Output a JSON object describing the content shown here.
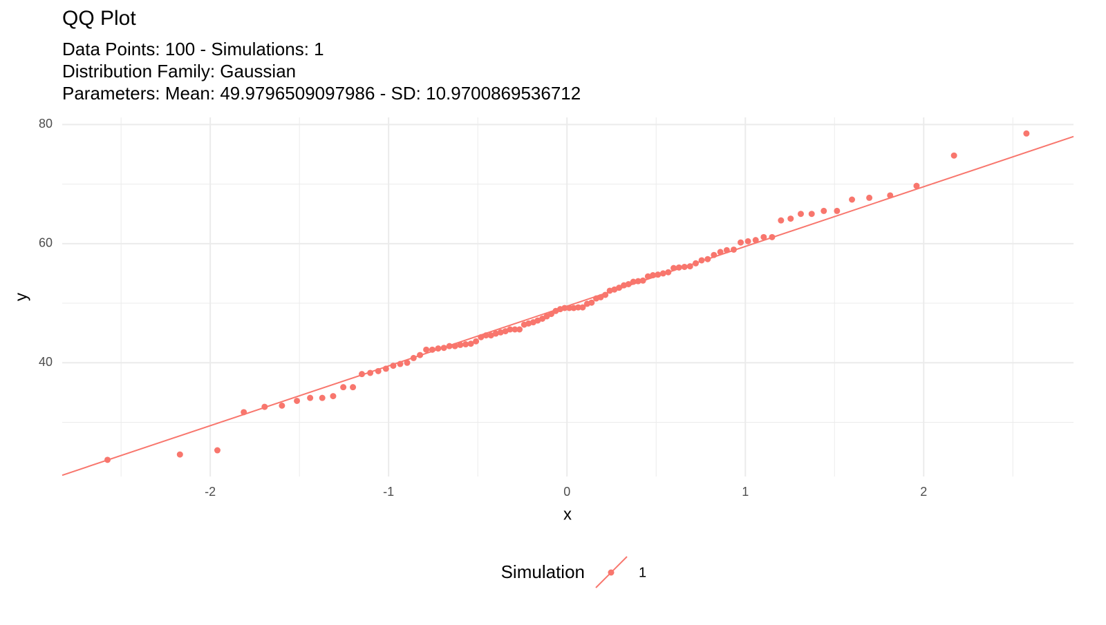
{
  "chart_data": {
    "type": "scatter",
    "title": "QQ Plot",
    "subtitle": [
      "Data Points: 100 - Simulations: 1",
      "Distribution Family: Gaussian",
      "Parameters: Mean: 49.9796509097986 - SD: 10.9700869536712"
    ],
    "x_label": "x",
    "y_label": "y",
    "legend_title": "Simulation",
    "legend_position": "bottom",
    "grid": true,
    "xlim": [
      -2.83,
      2.84
    ],
    "ylim": [
      20.9,
      81.2
    ],
    "xticks": [
      -2,
      -1,
      0,
      1,
      2
    ],
    "yticks": [
      40,
      60,
      80
    ],
    "x_minor_breaks": [
      -2.5,
      -1.5,
      -0.5,
      0.5,
      1.5,
      2.5
    ],
    "y_minor_breaks": [
      30,
      50,
      70
    ],
    "reference_line": {
      "slope": 10.03,
      "intercept": 49.5
    },
    "series": [
      {
        "name": "1",
        "color": "#F8766D",
        "x": [
          -2.576,
          -2.17,
          -1.96,
          -1.812,
          -1.695,
          -1.598,
          -1.514,
          -1.44,
          -1.372,
          -1.311,
          -1.254,
          -1.2,
          -1.15,
          -1.103,
          -1.058,
          -1.015,
          -0.974,
          -0.935,
          -0.896,
          -0.86,
          -0.824,
          -0.789,
          -0.755,
          -0.722,
          -0.69,
          -0.659,
          -0.628,
          -0.598,
          -0.568,
          -0.539,
          -0.51,
          -0.482,
          -0.454,
          -0.426,
          -0.399,
          -0.372,
          -0.345,
          -0.319,
          -0.292,
          -0.266,
          -0.24,
          -0.215,
          -0.189,
          -0.164,
          -0.138,
          -0.113,
          -0.088,
          -0.063,
          -0.038,
          -0.013,
          0.013,
          0.038,
          0.063,
          0.088,
          0.113,
          0.138,
          0.164,
          0.189,
          0.215,
          0.24,
          0.266,
          0.292,
          0.319,
          0.345,
          0.372,
          0.399,
          0.426,
          0.454,
          0.482,
          0.51,
          0.539,
          0.568,
          0.598,
          0.628,
          0.659,
          0.69,
          0.722,
          0.755,
          0.789,
          0.824,
          0.86,
          0.896,
          0.935,
          0.974,
          1.015,
          1.058,
          1.103,
          1.15,
          1.2,
          1.254,
          1.311,
          1.372,
          1.44,
          1.514,
          1.598,
          1.695,
          1.812,
          1.96,
          2.17,
          2.576
        ],
        "values": [
          23.7,
          24.6,
          25.3,
          31.7,
          32.6,
          32.8,
          33.6,
          34.1,
          34.1,
          34.4,
          35.9,
          35.9,
          38.1,
          38.3,
          38.6,
          39.0,
          39.5,
          39.8,
          40.0,
          40.8,
          41.3,
          42.2,
          42.2,
          42.4,
          42.5,
          42.8,
          42.8,
          43.0,
          43.1,
          43.2,
          43.6,
          44.3,
          44.6,
          44.6,
          44.9,
          45.1,
          45.3,
          45.6,
          45.6,
          45.6,
          46.4,
          46.6,
          46.8,
          47.1,
          47.4,
          47.8,
          48.2,
          48.7,
          49.0,
          49.2,
          49.2,
          49.2,
          49.3,
          49.3,
          49.9,
          50.1,
          50.8,
          51.0,
          51.4,
          52.1,
          52.3,
          52.6,
          53.0,
          53.2,
          53.6,
          53.7,
          53.8,
          54.5,
          54.7,
          54.8,
          55.0,
          55.2,
          55.9,
          56.0,
          56.1,
          56.2,
          56.7,
          57.2,
          57.4,
          58.1,
          58.6,
          58.9,
          59.0,
          60.2,
          60.4,
          60.6,
          61.1,
          61.1,
          63.9,
          64.2,
          65.0,
          65.0,
          65.5,
          65.5,
          67.4,
          67.7,
          68.1,
          69.7,
          74.8,
          78.5
        ]
      }
    ]
  }
}
